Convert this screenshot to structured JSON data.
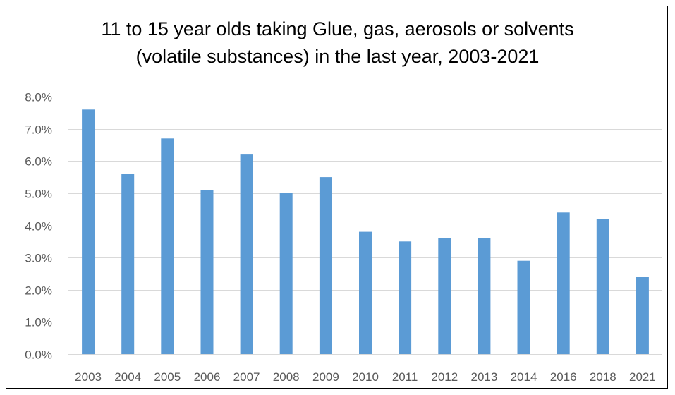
{
  "chart_data": {
    "type": "bar",
    "title": "11 to 15 year olds taking Glue, gas, aerosols or solvents (volatile substances) in the last year, 2003-2021",
    "title_lines": [
      "11 to 15 year olds taking Glue, gas, aerosols or solvents",
      "(volatile substances) in the last year, 2003-2021"
    ],
    "categories": [
      "2003",
      "2004",
      "2005",
      "2006",
      "2007",
      "2008",
      "2009",
      "2010",
      "2011",
      "2012",
      "2013",
      "2014",
      "2016",
      "2018",
      "2021"
    ],
    "values": [
      7.6,
      5.6,
      6.7,
      5.1,
      6.2,
      5.0,
      5.5,
      3.8,
      3.5,
      3.6,
      3.6,
      2.9,
      4.4,
      4.2,
      2.4
    ],
    "ylim": [
      0,
      8
    ],
    "yticks": [
      0,
      1,
      2,
      3,
      4,
      5,
      6,
      7,
      8
    ],
    "ytick_labels": [
      "0.0%",
      "1.0%",
      "2.0%",
      "3.0%",
      "4.0%",
      "5.0%",
      "6.0%",
      "7.0%",
      "8.0%"
    ],
    "xlabel": "",
    "ylabel": "",
    "grid": true,
    "legend": "none",
    "bar_color": "#5b9bd5",
    "grid_color": "#d9d9d9"
  }
}
